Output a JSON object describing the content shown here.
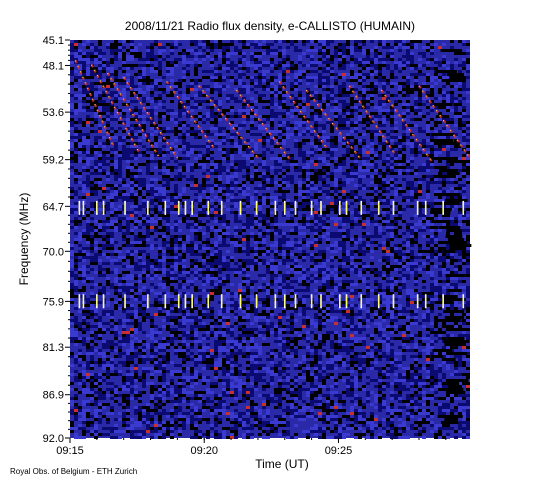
{
  "chart_data": {
    "type": "heatmap",
    "title": "2008/11/21  Radio flux density, e-CALLISTO (HUMAIN)",
    "xlabel": "Time (UT)",
    "ylabel": "Frequency (MHz)",
    "x_ticks": [
      "09:15",
      "09:20",
      "09:25"
    ],
    "x_tick_minutes": [
      15,
      20,
      25
    ],
    "x_range_minutes": [
      15,
      29.9
    ],
    "y_ticks": [
      "45.1",
      "48.1",
      "53.6",
      "59.2",
      "64.7",
      "70.0",
      "75.9",
      "81.3",
      "86.9",
      "92.0"
    ],
    "y_range": [
      45.1,
      92.0
    ],
    "y_inverted": true,
    "colormap": [
      "#000000",
      "#0a0a70",
      "#2a2aa8",
      "#3a3ad0",
      "#c83030",
      "#ff8a20",
      "#ffff60",
      "#ffffff"
    ],
    "background_color": "#2a2aa8",
    "drifting_bursts": [
      {
        "start_min": 15.2,
        "end_min": 16.6,
        "start_mhz": 47.5,
        "end_mhz": 57.5
      },
      {
        "start_min": 15.8,
        "end_min": 17.6,
        "start_mhz": 48.0,
        "end_mhz": 58.5
      },
      {
        "start_min": 16.4,
        "end_min": 18.3,
        "start_mhz": 49.0,
        "end_mhz": 58.8
      },
      {
        "start_min": 17.0,
        "end_min": 19.0,
        "start_mhz": 49.5,
        "end_mhz": 59.0
      },
      {
        "start_min": 18.6,
        "end_min": 20.4,
        "start_mhz": 50.0,
        "end_mhz": 58.0
      },
      {
        "start_min": 19.8,
        "end_min": 22.0,
        "start_mhz": 50.5,
        "end_mhz": 59.0
      },
      {
        "start_min": 21.2,
        "end_min": 23.2,
        "start_mhz": 51.0,
        "end_mhz": 59.2
      },
      {
        "start_min": 22.8,
        "end_min": 24.6,
        "start_mhz": 50.0,
        "end_mhz": 58.0
      },
      {
        "start_min": 23.8,
        "end_min": 25.8,
        "start_mhz": 51.0,
        "end_mhz": 59.0
      },
      {
        "start_min": 25.4,
        "end_min": 27.1,
        "start_mhz": 50.5,
        "end_mhz": 58.5
      },
      {
        "start_min": 26.6,
        "end_min": 28.5,
        "start_mhz": 51.0,
        "end_mhz": 59.5
      },
      {
        "start_min": 28.0,
        "end_min": 29.9,
        "start_mhz": 50.5,
        "end_mhz": 59.0
      }
    ],
    "interference_spikes_min": [
      15.35,
      15.5,
      16.0,
      16.25,
      17.05,
      17.9,
      18.55,
      19.05,
      19.3,
      19.55,
      20.15,
      20.65,
      21.35,
      21.95,
      22.65,
      23.0,
      23.4,
      24.0,
      24.35,
      25.05,
      25.3,
      25.85,
      26.5,
      27.05,
      27.95,
      28.25,
      28.9,
      29.65
    ],
    "interference_bands_mhz": [
      65.0,
      76.0
    ]
  },
  "footer": {
    "credit": "Royal Obs. of Belgium - ETH Zurich"
  }
}
